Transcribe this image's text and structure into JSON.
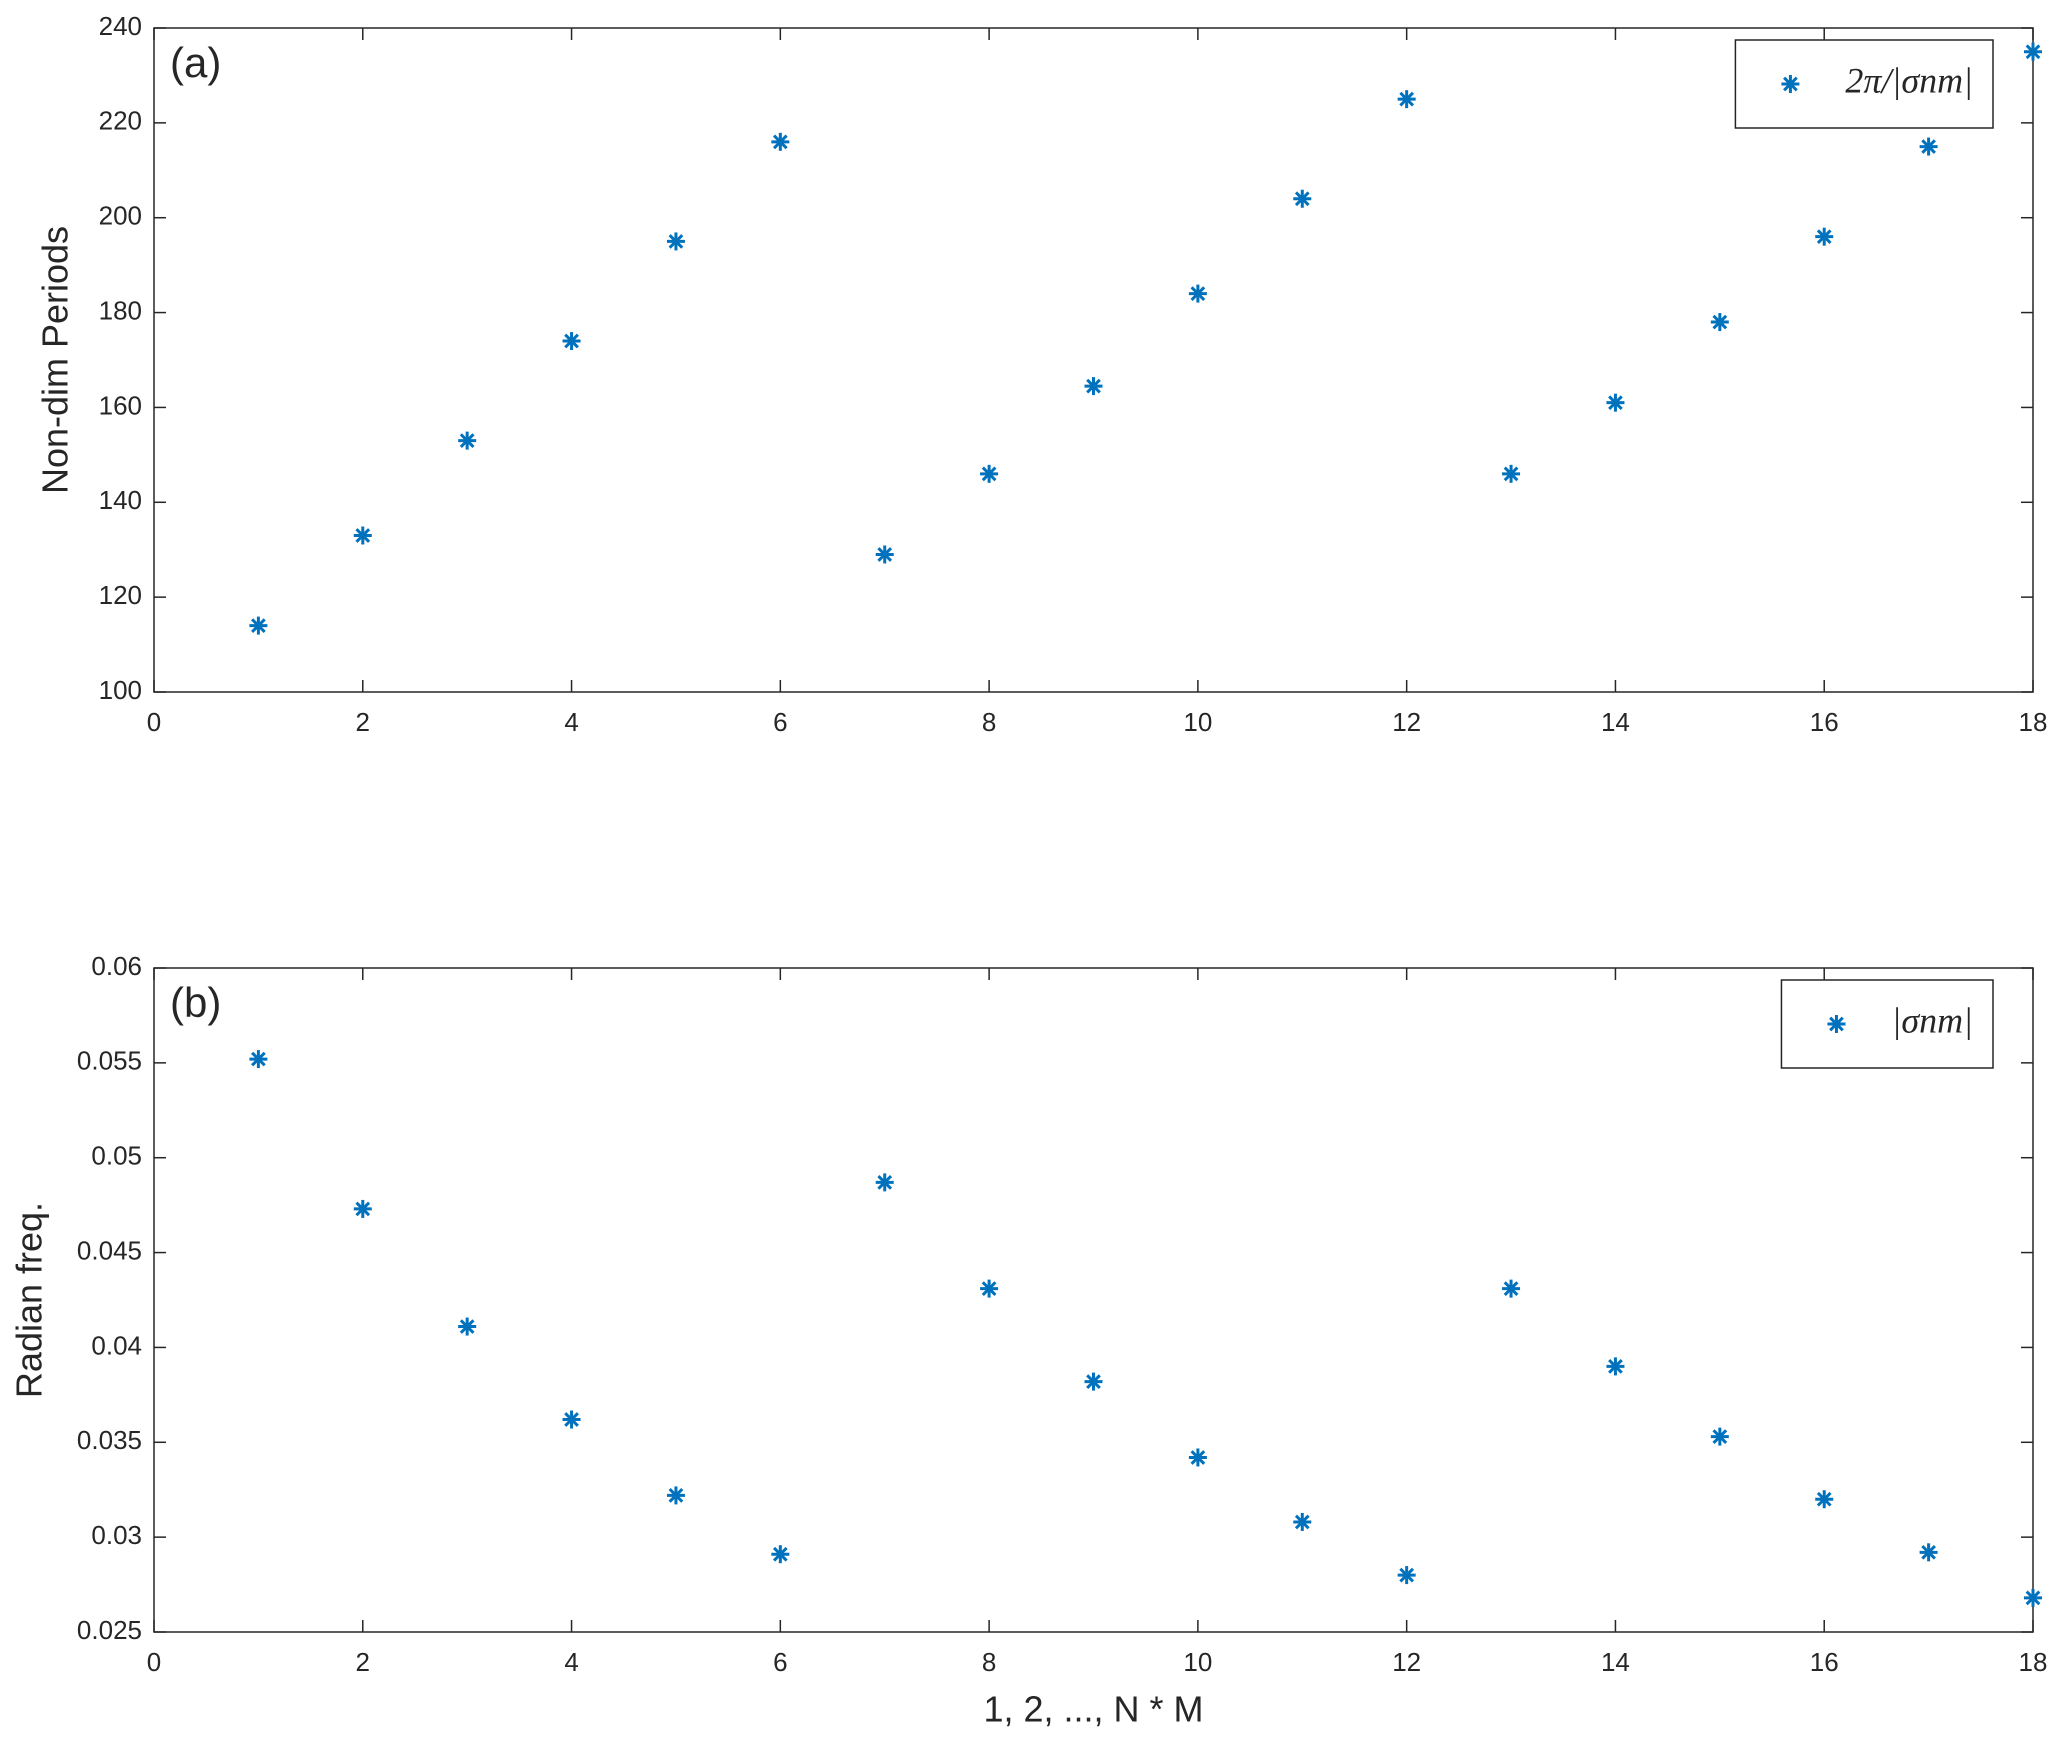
{
  "chart_data": [
    {
      "type": "scatter",
      "annotation": "(a)",
      "y_label": "Non-dim Periods",
      "x": [
        1,
        2,
        3,
        4,
        5,
        6,
        7,
        8,
        9,
        10,
        11,
        12,
        13,
        14,
        15,
        16,
        17,
        18
      ],
      "series": [
        {
          "name": "2π/|σnm|",
          "color": "#0072bd",
          "marker": "*",
          "values": [
            114,
            133,
            153,
            174,
            195,
            216,
            129,
            146,
            164.5,
            184,
            204,
            225,
            146,
            161,
            178,
            196,
            215,
            235
          ]
        }
      ],
      "xlim": [
        0,
        18
      ],
      "xticks": [
        0,
        2,
        4,
        6,
        8,
        10,
        12,
        14,
        16,
        18
      ],
      "ylim": [
        100,
        240
      ],
      "yticks": [
        100,
        120,
        140,
        160,
        180,
        200,
        220,
        240
      ],
      "legend": "upper right",
      "grid": false
    },
    {
      "type": "scatter",
      "annotation": "(b)",
      "x_label": "1, 2, ..., N * M",
      "y_label": "Radian freq.",
      "x": [
        1,
        2,
        3,
        4,
        5,
        6,
        7,
        8,
        9,
        10,
        11,
        12,
        13,
        14,
        15,
        16,
        17,
        18
      ],
      "series": [
        {
          "name": "|σnm|",
          "color": "#0072bd",
          "marker": "*",
          "values": [
            0.0552,
            0.0473,
            0.0411,
            0.0362,
            0.0322,
            0.0291,
            0.0487,
            0.0431,
            0.0382,
            0.0342,
            0.0308,
            0.028,
            0.0431,
            0.039,
            0.0353,
            0.032,
            0.0292,
            0.0268
          ]
        }
      ],
      "xlim": [
        0,
        18
      ],
      "xticks": [
        0,
        2,
        4,
        6,
        8,
        10,
        12,
        14,
        16,
        18
      ],
      "ylim": [
        0.025,
        0.06
      ],
      "yticks": [
        0.025,
        0.03,
        0.035,
        0.04,
        0.045,
        0.05,
        0.055,
        0.06
      ],
      "legend": "upper right",
      "grid": false
    }
  ]
}
